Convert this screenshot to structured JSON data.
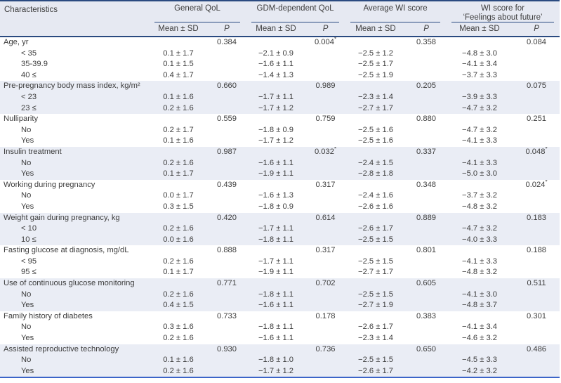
{
  "table": {
    "header": {
      "characteristics": "Characteristics",
      "groups": [
        "General QoL",
        "GDM-dependent QoL",
        "Average WI score",
        "WI score for\n‘Feelings about future’"
      ],
      "mean_sd": "Mean ± SD",
      "p": "P"
    },
    "colors": {
      "rule_navy": "#2a4a80",
      "rule_bottom_blue": "#3c64c8",
      "header_bg": "#e6e9f2",
      "shaded_row_bg": "#eaedf5",
      "text": "#3d3d3d"
    },
    "sections": [
      {
        "label": "Age, yr",
        "p_values": [
          "0.384",
          "0.004*",
          "0.358",
          "0.084"
        ],
        "rows": [
          {
            "label": "< 35",
            "means": [
              "0.1 ± 1.7",
              "−2.1 ± 0.9",
              "−2.5 ± 1.2",
              "−4.8 ± 3.0"
            ]
          },
          {
            "label": "35-39.9",
            "means": [
              "0.1 ± 1.5",
              "−1.6 ± 1.1",
              "−2.5 ± 1.7",
              "−4.1 ± 3.4"
            ]
          },
          {
            "label": "40 ≤",
            "means": [
              "0.4 ± 1.7",
              "−1.4 ± 1.3",
              "−2.5 ± 1.9",
              "−3.7 ± 3.3"
            ]
          }
        ]
      },
      {
        "label": "Pre-pregnancy body mass index, kg/m²",
        "p_values": [
          "0.660",
          "0.989",
          "0.205",
          "0.075"
        ],
        "rows": [
          {
            "label": "< 23",
            "means": [
              "0.1 ± 1.6",
              "−1.7 ± 1.1",
              "−2.3 ± 1.4",
              "−3.9 ± 3.3"
            ]
          },
          {
            "label": "23 ≤",
            "means": [
              "0.2 ± 1.6",
              "−1.7 ± 1.2",
              "−2.7 ± 1.7",
              "−4.7 ± 3.2"
            ]
          }
        ]
      },
      {
        "label": "Nulliparity",
        "p_values": [
          "0.559",
          "0.759",
          "0.880",
          "0.251"
        ],
        "rows": [
          {
            "label": "No",
            "means": [
              "0.2 ± 1.7",
              "−1.8 ± 0.9",
              "−2.5 ± 1.6",
              "−4.7 ± 3.2"
            ]
          },
          {
            "label": "Yes",
            "means": [
              "0.1 ± 1.6",
              "−1.7 ± 1.2",
              "−2.5 ± 1.6",
              "−4.1 ± 3.3"
            ]
          }
        ]
      },
      {
        "label": "Insulin treatment",
        "p_values": [
          "0.987",
          "0.032*",
          "0.337",
          "0.048*"
        ],
        "rows": [
          {
            "label": "No",
            "means": [
              "0.2 ± 1.6",
              "−1.6 ± 1.1",
              "−2.4 ± 1.5",
              "−4.1 ± 3.3"
            ]
          },
          {
            "label": "Yes",
            "means": [
              "0.1 ± 1.7",
              "−1.9 ± 1.1",
              "−2.8 ± 1.8",
              "−5.0 ± 3.0"
            ]
          }
        ]
      },
      {
        "label": "Working during pregnancy",
        "p_values": [
          "0.439",
          "0.317",
          "0.348",
          "0.024*"
        ],
        "rows": [
          {
            "label": "No",
            "means": [
              "0.0 ± 1.7",
              "−1.6 ± 1.3",
              "−2.4 ± 1.6",
              "−3.7 ± 3.2"
            ]
          },
          {
            "label": "Yes",
            "means": [
              "0.3 ± 1.5",
              "−1.8 ± 0.9",
              "−2.6 ± 1.6",
              "−4.8 ± 3.2"
            ]
          }
        ]
      },
      {
        "label": "Weight gain during pregnancy, kg",
        "p_values": [
          "0.420",
          "0.614",
          "0.889",
          "0.183"
        ],
        "rows": [
          {
            "label": "< 10",
            "means": [
              "0.2 ± 1.6",
              "−1.7 ± 1.1",
              "−2.6 ± 1.7",
              "−4.7 ± 3.2"
            ]
          },
          {
            "label": "10 ≤",
            "means": [
              "0.0 ± 1.6",
              "−1.8 ± 1.1",
              "−2.5 ± 1.5",
              "−4.0 ± 3.3"
            ]
          }
        ]
      },
      {
        "label": "Fasting glucose at diagnosis, mg/dL",
        "p_values": [
          "0.888",
          "0.317",
          "0.801",
          "0.188"
        ],
        "rows": [
          {
            "label": "< 95",
            "means": [
              "0.2 ± 1.6",
              "−1.7 ± 1.1",
              "−2.5 ± 1.5",
              "−4.1 ± 3.3"
            ]
          },
          {
            "label": "95 ≤",
            "means": [
              "0.1 ± 1.7",
              "−1.9 ± 1.1",
              "−2.7 ± 1.7",
              "−4.8 ± 3.2"
            ]
          }
        ]
      },
      {
        "label": "Use of continuous glucose monitoring",
        "p_values": [
          "0.771",
          "0.702",
          "0.605",
          "0.511"
        ],
        "rows": [
          {
            "label": "No",
            "means": [
              "0.2 ± 1.6",
              "−1.8 ± 1.1",
              "−2.5 ± 1.5",
              "−4.1 ± 3.0"
            ]
          },
          {
            "label": "Yes",
            "means": [
              "0.4 ± 1.5",
              "−1.6 ± 1.1",
              "−2.7 ± 1.9",
              "−4.8 ± 3.7"
            ]
          }
        ]
      },
      {
        "label": "Family history of diabetes",
        "p_values": [
          "0.733",
          "0.178",
          "0.383",
          "0.301"
        ],
        "rows": [
          {
            "label": "No",
            "means": [
              "0.3 ± 1.6",
              "−1.8 ± 1.1",
              "−2.6 ± 1.7",
              "−4.1 ± 3.4"
            ]
          },
          {
            "label": "Yes",
            "means": [
              "0.2 ± 1.6",
              "−1.6 ± 1.1",
              "−2.3 ± 1.4",
              "−4.6 ± 3.2"
            ]
          }
        ]
      },
      {
        "label": "Assisted reproductive technology",
        "p_values": [
          "0.930",
          "0.736",
          "0.650",
          "0.486"
        ],
        "rows": [
          {
            "label": "No",
            "means": [
              "0.1 ± 1.6",
              "−1.8 ± 1.0",
              "−2.5 ± 1.5",
              "−4.5 ± 3.3"
            ]
          },
          {
            "label": "Yes",
            "means": [
              "0.2 ± 1.6",
              "−1.7 ± 1.2",
              "−2.6 ± 1.7",
              "−4.2 ± 3.2"
            ]
          }
        ]
      }
    ]
  }
}
